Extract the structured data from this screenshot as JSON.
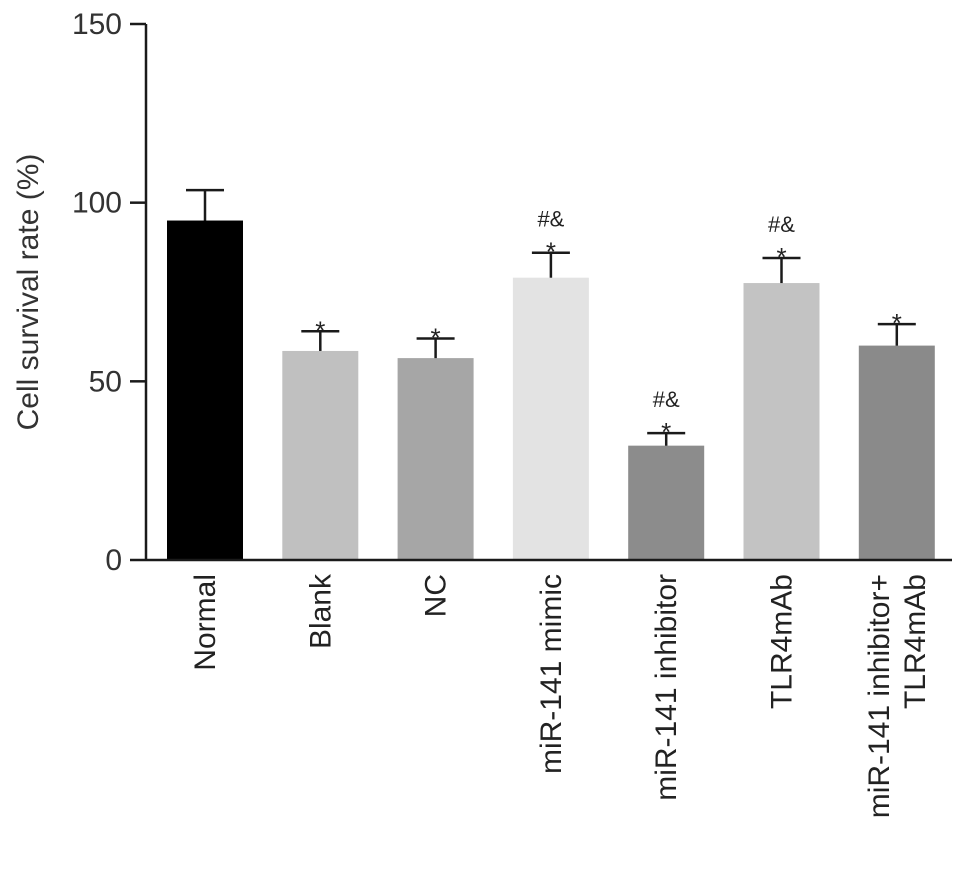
{
  "chart_data": {
    "type": "bar",
    "title": "",
    "xlabel": "",
    "ylabel": "Cell survival rate (%)",
    "ylim": [
      0,
      150
    ],
    "yticks": [
      0,
      50,
      100,
      150
    ],
    "grid": false,
    "legend": "none",
    "categories": [
      [
        "Normal"
      ],
      [
        "Blank"
      ],
      [
        "NC"
      ],
      [
        "miR-141 mimic"
      ],
      [
        "miR-141 inhibitor"
      ],
      [
        "TLR4mAb"
      ],
      [
        "miR-141 inhibitor+",
        "TLR4mAb"
      ]
    ],
    "values": [
      95,
      58.5,
      56.5,
      79,
      32,
      77.5,
      60
    ],
    "errors": [
      8.5,
      5.5,
      5.5,
      7,
      3.5,
      7,
      6
    ],
    "colors": [
      "#000000",
      "#c0c0c0",
      "#a6a6a6",
      "#e3e3e3",
      "#8c8c8c",
      "#c3c3c3",
      "#8a8a8a"
    ],
    "annotations": [
      [],
      [
        "*"
      ],
      [
        "*"
      ],
      [
        "#&",
        "*"
      ],
      [
        "#&",
        "*"
      ],
      [
        "#&",
        "*"
      ],
      [
        "*"
      ]
    ]
  }
}
